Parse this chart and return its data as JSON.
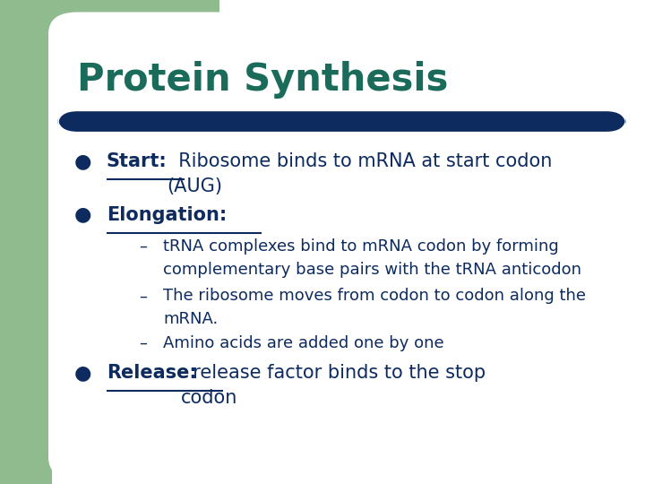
{
  "title": "Protein Synthesis",
  "title_color": "#1a6b5a",
  "title_fontsize": 30,
  "bg_color": "#ffffff",
  "left_bar_color": "#8fbb8f",
  "divider_color": "#0d2b5e",
  "text_color": "#0d2b5e",
  "label_fontsize": 15,
  "sub_fontsize": 13,
  "bullet1_label": "Start:",
  "bullet1_rest": "  Ribosome binds to mRNA at start codon",
  "bullet1_cont": "(AUG)",
  "bullet2_label": "Elongation:",
  "sub1a": "tRNA complexes bind to mRNA codon by forming",
  "sub1b": "complementary base pairs with the tRNA anticodon",
  "sub2a": "The ribosome moves from codon to codon along the",
  "sub2b": "mRNA.",
  "sub3": "Amino acids are added one by one",
  "bullet3_label": "Release:",
  "bullet3_rest": "  release factor binds to the stop",
  "bullet3_cont": "codon"
}
